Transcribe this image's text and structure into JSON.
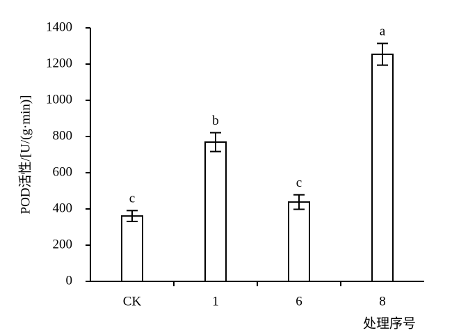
{
  "chart_data": {
    "type": "bar",
    "y_label": "POD活性/[U/(g·min)]",
    "x_label": "处理序号",
    "categories": [
      "CK",
      "1",
      "6",
      "8"
    ],
    "values": [
      361,
      769,
      438,
      1254
    ],
    "errors": [
      30,
      52,
      40,
      60
    ],
    "annotations": [
      "c",
      "b",
      "c",
      "a"
    ],
    "color": "#ffffff",
    "ylim": [
      0,
      1400
    ],
    "yticks": [
      0,
      200,
      400,
      600,
      800,
      1000,
      1200,
      1400
    ],
    "grid": false
  }
}
